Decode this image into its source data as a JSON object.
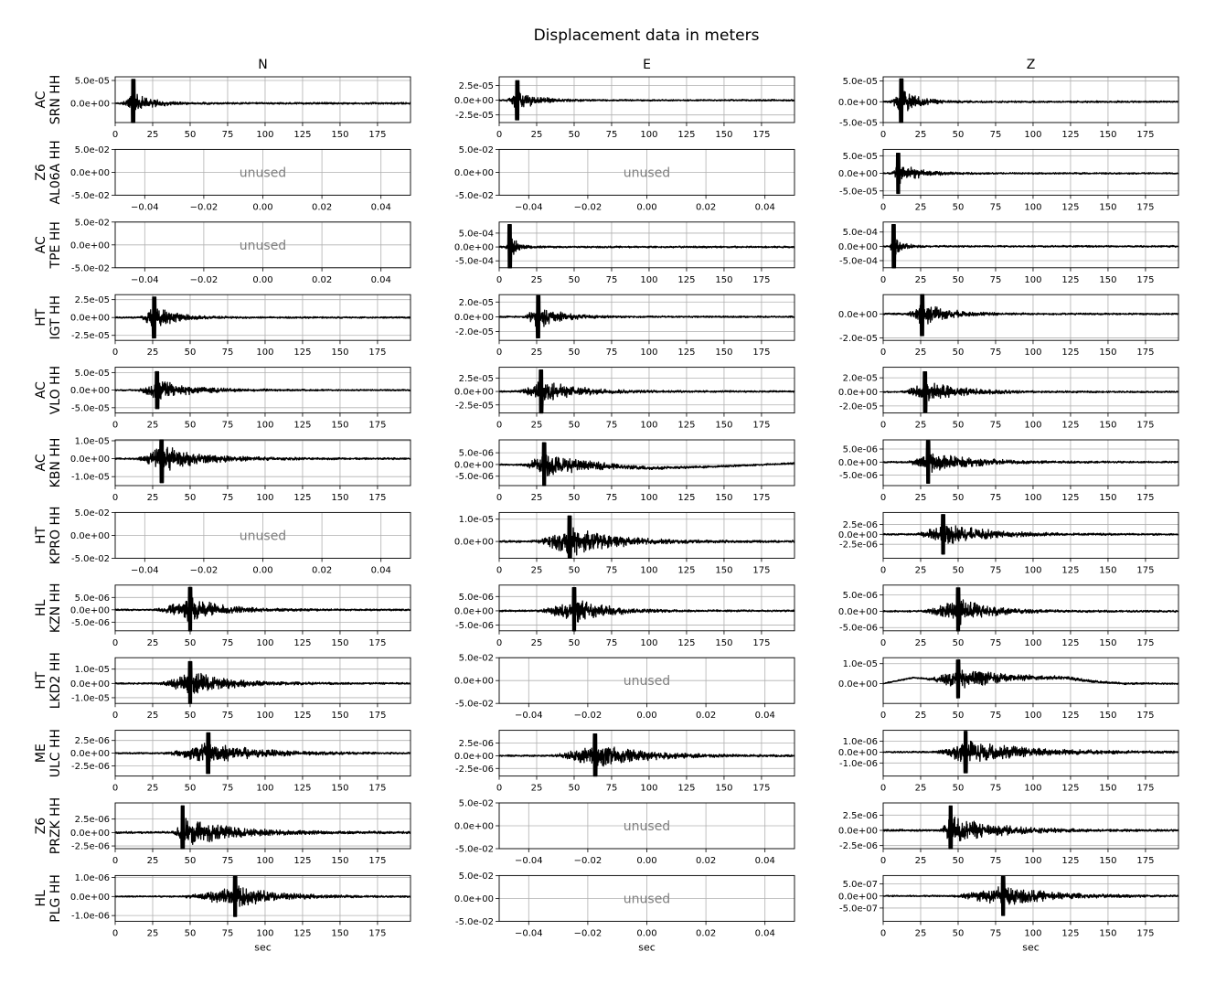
{
  "chart_data": {
    "type": "line",
    "title": "Displacement data in meters",
    "xlabel": "sec",
    "columns": [
      "N",
      "E",
      "Z"
    ],
    "placeholder_text": "unused",
    "placeholder_xticks": [
      "−0.04",
      "−0.02",
      "0.00",
      "0.02",
      "0.04"
    ],
    "placeholder_yticks": [
      "5.0e-02",
      "0.0e+00",
      "-5.0e-02"
    ],
    "time_xlim": [
      0,
      197
    ],
    "time_xticks": [
      "0",
      "25",
      "50",
      "75",
      "100",
      "125",
      "150",
      "175"
    ],
    "rows": [
      {
        "network": "AC",
        "station": "SRN HH",
        "panels": [
          {
            "unused": false,
            "ylim": [
              -4.2e-05,
              5.8e-05
            ],
            "yticks": [
              {
                "v": 5e-05,
                "label": "5.0e-05"
              },
              {
                "v": 0,
                "label": "0.0e+00"
              }
            ],
            "onset": 4,
            "peak": 12,
            "amp": 5.5e-05,
            "decay": 10,
            "drift": []
          },
          {
            "unused": false,
            "ylim": [
              -3.8e-05,
              4e-05
            ],
            "yticks": [
              {
                "v": 2.5e-05,
                "label": "2.5e-05"
              },
              {
                "v": 0,
                "label": "0.0e+00"
              },
              {
                "v": -2.5e-05,
                "label": "-2.5e-05"
              }
            ],
            "onset": 4,
            "peak": 12,
            "amp": 3.5e-05,
            "decay": 12,
            "drift": []
          },
          {
            "unused": false,
            "ylim": [
              -5e-05,
              6e-05
            ],
            "yticks": [
              {
                "v": 5e-05,
                "label": "5.0e-05"
              },
              {
                "v": 0,
                "label": "0.0e+00"
              },
              {
                "v": -5e-05,
                "label": "-5.0e-05"
              }
            ],
            "onset": 4,
            "peak": 12,
            "amp": 5.8e-05,
            "decay": 11,
            "drift": []
          }
        ]
      },
      {
        "network": "Z6",
        "station": "AL06A HH",
        "panels": [
          {
            "unused": true
          },
          {
            "unused": true
          },
          {
            "unused": false,
            "ylim": [
              -6.2e-05,
              6.8e-05
            ],
            "yticks": [
              {
                "v": 5e-05,
                "label": "5.0e-05"
              },
              {
                "v": 0,
                "label": "0.0e+00"
              },
              {
                "v": -5e-05,
                "label": "-5.0e-05"
              }
            ],
            "onset": 5,
            "peak": 10,
            "amp": 6e-05,
            "decay": 13,
            "drift": []
          }
        ]
      },
      {
        "network": "AC",
        "station": "TPE HH",
        "panels": [
          {
            "unused": true
          },
          {
            "unused": false,
            "ylim": [
              -0.00075,
              0.0009
            ],
            "yticks": [
              {
                "v": 0.0005,
                "label": "5.0e-04"
              },
              {
                "v": 0,
                "label": "0.0e+00"
              },
              {
                "v": -0.0005,
                "label": "-5.0e-04"
              }
            ],
            "onset": 4,
            "peak": 7,
            "amp": 0.00085,
            "decay": 5,
            "drift": []
          },
          {
            "unused": false,
            "ylim": [
              -0.00075,
              0.00085
            ],
            "yticks": [
              {
                "v": 0.0005,
                "label": "5.0e-04"
              },
              {
                "v": 0,
                "label": "0.0e+00"
              },
              {
                "v": -0.0005,
                "label": "-5.0e-04"
              }
            ],
            "onset": 4,
            "peak": 7,
            "amp": 0.0008,
            "decay": 5,
            "drift": []
          }
        ]
      },
      {
        "network": "HT",
        "station": "IGT HH",
        "panels": [
          {
            "unused": false,
            "ylim": [
              -3.2e-05,
              3.2e-05
            ],
            "yticks": [
              {
                "v": 2.5e-05,
                "label": "2.5e-05"
              },
              {
                "v": 0,
                "label": "0.0e+00"
              },
              {
                "v": -2.5e-05,
                "label": "-2.5e-05"
              }
            ],
            "onset": 15,
            "peak": 26,
            "amp": 3e-05,
            "decay": 14,
            "drift": []
          },
          {
            "unused": false,
            "ylim": [
              -3.2e-05,
              3e-05
            ],
            "yticks": [
              {
                "v": 2e-05,
                "label": "2.0e-05"
              },
              {
                "v": 0,
                "label": "0.0e+00"
              },
              {
                "v": -2e-05,
                "label": "-2.0e-05"
              }
            ],
            "onset": 15,
            "peak": 26,
            "amp": 3e-05,
            "decay": 14,
            "drift": []
          },
          {
            "unused": false,
            "ylim": [
              -2.2e-05,
              1.6e-05
            ],
            "yticks": [
              {
                "v": 0,
                "label": "0.0e+00"
              },
              {
                "v": -2e-05,
                "label": "-2.0e-05"
              }
            ],
            "onset": 15,
            "peak": 26,
            "amp": 1.9e-05,
            "decay": 16,
            "drift": []
          }
        ]
      },
      {
        "network": "AC",
        "station": "VLO HH",
        "panels": [
          {
            "unused": false,
            "ylim": [
              -6.5e-05,
              6.5e-05
            ],
            "yticks": [
              {
                "v": 5e-05,
                "label": "5.0e-05"
              },
              {
                "v": 0,
                "label": "0.0e+00"
              },
              {
                "v": -5e-05,
                "label": "-5.0e-05"
              }
            ],
            "onset": 12,
            "peak": 28,
            "amp": 5.5e-05,
            "decay": 22,
            "drift": []
          },
          {
            "unused": false,
            "ylim": [
              -4e-05,
              4.5e-05
            ],
            "yticks": [
              {
                "v": 2.5e-05,
                "label": "2.5e-05"
              },
              {
                "v": 0,
                "label": "0.0e+00"
              },
              {
                "v": -2.5e-05,
                "label": "-2.5e-05"
              }
            ],
            "onset": 12,
            "peak": 28,
            "amp": 4.2e-05,
            "decay": 22,
            "drift": []
          },
          {
            "unused": false,
            "ylim": [
              -3e-05,
              3.5e-05
            ],
            "yticks": [
              {
                "v": 2e-05,
                "label": "2.0e-05"
              },
              {
                "v": 0,
                "label": "0.0e+00"
              },
              {
                "v": -2e-05,
                "label": "-2.0e-05"
              }
            ],
            "onset": 12,
            "peak": 28,
            "amp": 3e-05,
            "decay": 22,
            "drift": []
          }
        ]
      },
      {
        "network": "AC",
        "station": "KBN HH",
        "panels": [
          {
            "unused": false,
            "ylim": [
              -1.5e-05,
              1.05e-05
            ],
            "yticks": [
              {
                "v": 1e-05,
                "label": "1.0e-05"
              },
              {
                "v": 0,
                "label": "0.0e+00"
              },
              {
                "v": -1e-05,
                "label": "-1.0e-05"
              }
            ],
            "onset": 14,
            "peak": 31,
            "amp": 1.4e-05,
            "decay": 24,
            "drift": []
          },
          {
            "unused": false,
            "ylim": [
              -9e-06,
              1.05e-05
            ],
            "yticks": [
              {
                "v": 5e-06,
                "label": "5.0e-06"
              },
              {
                "v": 0,
                "label": "0.0e+00"
              },
              {
                "v": -5e-06,
                "label": "-5.0e-06"
              }
            ],
            "onset": 15,
            "peak": 30,
            "amp": 1e-05,
            "decay": 26,
            "drift": [
              [
                0,
                0
              ],
              [
                60,
                -5e-07
              ],
              [
                100,
                -1.5e-06
              ],
              [
                140,
                -1e-06
              ],
              [
                197,
                5e-07
              ]
            ]
          },
          {
            "unused": false,
            "ylim": [
              -9e-06,
              8.5e-06
            ],
            "yticks": [
              {
                "v": 5e-06,
                "label": "5.0e-06"
              },
              {
                "v": 0,
                "label": "0.0e+00"
              },
              {
                "v": -5e-06,
                "label": "-5.0e-06"
              }
            ],
            "onset": 15,
            "peak": 30,
            "amp": 8.5e-06,
            "decay": 26,
            "drift": []
          }
        ]
      },
      {
        "network": "HT",
        "station": "KPRO HH",
        "panels": [
          {
            "unused": true
          },
          {
            "unused": false,
            "ylim": [
              -7.5e-06,
              1.3e-05
            ],
            "yticks": [
              {
                "v": 1e-05,
                "label": "1.0e-05"
              },
              {
                "v": 0,
                "label": "0.0e+00"
              }
            ],
            "onset": 20,
            "peak": 47,
            "amp": 1.2e-05,
            "decay": 28,
            "drift": []
          },
          {
            "unused": false,
            "ylim": [
              -6e-06,
              5.5e-06
            ],
            "yticks": [
              {
                "v": 2.5e-06,
                "label": "2.5e-06"
              },
              {
                "v": 0,
                "label": "0.0e+00"
              },
              {
                "v": -2.5e-06,
                "label": "-2.5e-06"
              }
            ],
            "onset": 20,
            "peak": 40,
            "amp": 5.2e-06,
            "decay": 30,
            "drift": []
          }
        ]
      },
      {
        "network": "HL",
        "station": "KZN HH",
        "panels": [
          {
            "unused": false,
            "ylim": [
              -8.5e-06,
              1e-05
            ],
            "yticks": [
              {
                "v": 5e-06,
                "label": "5.0e-06"
              },
              {
                "v": 0,
                "label": "0.0e+00"
              },
              {
                "v": -5e-06,
                "label": "-5.0e-06"
              }
            ],
            "onset": 25,
            "peak": 50,
            "amp": 9.5e-06,
            "decay": 20,
            "drift": []
          },
          {
            "unused": false,
            "ylim": [
              -7e-06,
              9e-06
            ],
            "yticks": [
              {
                "v": 5e-06,
                "label": "5.0e-06"
              },
              {
                "v": 0,
                "label": "0.0e+00"
              },
              {
                "v": -5e-06,
                "label": "-5.0e-06"
              }
            ],
            "onset": 25,
            "peak": 50,
            "amp": 8.5e-06,
            "decay": 20,
            "drift": []
          },
          {
            "unused": false,
            "ylim": [
              -6e-06,
              8e-06
            ],
            "yticks": [
              {
                "v": 5e-06,
                "label": "5.0e-06"
              },
              {
                "v": 0,
                "label": "0.0e+00"
              },
              {
                "v": -5e-06,
                "label": "-5.0e-06"
              }
            ],
            "onset": 25,
            "peak": 50,
            "amp": 7.5e-06,
            "decay": 20,
            "drift": []
          }
        ]
      },
      {
        "network": "HT",
        "station": "LKD2 HH",
        "panels": [
          {
            "unused": false,
            "ylim": [
              -1.4e-05,
              1.8e-05
            ],
            "yticks": [
              {
                "v": 1e-05,
                "label": "1.0e-05"
              },
              {
                "v": 0,
                "label": "0.0e+00"
              },
              {
                "v": -1e-05,
                "label": "-1.0e-05"
              }
            ],
            "onset": 27,
            "peak": 50,
            "amp": 1.6e-05,
            "decay": 24,
            "drift": []
          },
          {
            "unused": true
          },
          {
            "unused": false,
            "ylim": [
              -1e-05,
              1.3e-05
            ],
            "yticks": [
              {
                "v": 1e-05,
                "label": "1.0e-05"
              },
              {
                "v": 0,
                "label": "0.0e+00"
              }
            ],
            "onset": 27,
            "peak": 50,
            "amp": 1e-05,
            "decay": 30,
            "drift": [
              [
                0,
                0
              ],
              [
                20,
                3e-06
              ],
              [
                35,
                2e-06
              ],
              [
                80,
                3e-06
              ],
              [
                120,
                3e-06
              ],
              [
                140,
                1e-06
              ],
              [
                160,
                0
              ],
              [
                197,
                0
              ]
            ]
          }
        ]
      },
      {
        "network": "ME",
        "station": "ULC HH",
        "panels": [
          {
            "unused": false,
            "ylim": [
              -4.5e-06,
              4.5e-06
            ],
            "yticks": [
              {
                "v": 2.5e-06,
                "label": "2.5e-06"
              },
              {
                "v": 0,
                "label": "0.0e+00"
              },
              {
                "v": -2.5e-06,
                "label": "-2.5e-06"
              }
            ],
            "onset": 30,
            "peak": 62,
            "amp": 4.2e-06,
            "decay": 30,
            "drift": []
          },
          {
            "unused": false,
            "ylim": [
              -4e-06,
              5e-06
            ],
            "yticks": [
              {
                "v": 2.5e-06,
                "label": "2.5e-06"
              },
              {
                "v": 0,
                "label": "0.0e+00"
              },
              {
                "v": -2.5e-06,
                "label": "-2.5e-06"
              }
            ],
            "onset": 33,
            "peak": 64,
            "amp": 4.5e-06,
            "decay": 30,
            "drift": []
          },
          {
            "unused": false,
            "ylim": [
              -2.2e-06,
              2e-06
            ],
            "yticks": [
              {
                "v": 1e-06,
                "label": "1.0e-06"
              },
              {
                "v": 0,
                "label": "0.0e+00"
              },
              {
                "v": -1e-06,
                "label": "-1.0e-06"
              }
            ],
            "onset": 32,
            "peak": 55,
            "amp": 2e-06,
            "decay": 40,
            "drift": []
          }
        ]
      },
      {
        "network": "Z6",
        "station": "PRZK HH",
        "panels": [
          {
            "unused": false,
            "ylim": [
              -3e-06,
              5.5e-06
            ],
            "yticks": [
              {
                "v": 2.5e-06,
                "label": "2.5e-06"
              },
              {
                "v": 0,
                "label": "0.0e+00"
              },
              {
                "v": -2.5e-06,
                "label": "-2.5e-06"
              }
            ],
            "onset": 37,
            "peak": 45,
            "amp": 5.2e-06,
            "decay": 30,
            "drift": []
          },
          {
            "unused": true
          },
          {
            "unused": false,
            "ylim": [
              -3e-06,
              4.5e-06
            ],
            "yticks": [
              {
                "v": 2.5e-06,
                "label": "2.5e-06"
              },
              {
                "v": 0,
                "label": "0.0e+00"
              },
              {
                "v": -2.5e-06,
                "label": "-2.5e-06"
              }
            ],
            "onset": 37,
            "peak": 45,
            "amp": 4.2e-06,
            "decay": 30,
            "drift": []
          }
        ]
      },
      {
        "network": "HL",
        "station": "PLG HH",
        "panels": [
          {
            "unused": false,
            "ylim": [
              -1.3e-06,
              1.1e-06
            ],
            "yticks": [
              {
                "v": 1e-06,
                "label": "1.0e-06"
              },
              {
                "v": 0,
                "label": "0.0e+00"
              },
              {
                "v": -1e-06,
                "label": "-1.0e-06"
              }
            ],
            "onset": 42,
            "peak": 80,
            "amp": 1.1e-06,
            "decay": 25,
            "drift": []
          },
          {
            "unused": true
          },
          {
            "unused": false,
            "ylim": [
              -1.05e-06,
              8.5e-07
            ],
            "yticks": [
              {
                "v": 5e-07,
                "label": "5.0e-07"
              },
              {
                "v": 0,
                "label": "0.0e+00"
              },
              {
                "v": -5e-07,
                "label": "-5.0e-07"
              }
            ],
            "onset": 43,
            "peak": 80,
            "amp": 8.5e-07,
            "decay": 30,
            "drift": []
          }
        ]
      }
    ]
  }
}
